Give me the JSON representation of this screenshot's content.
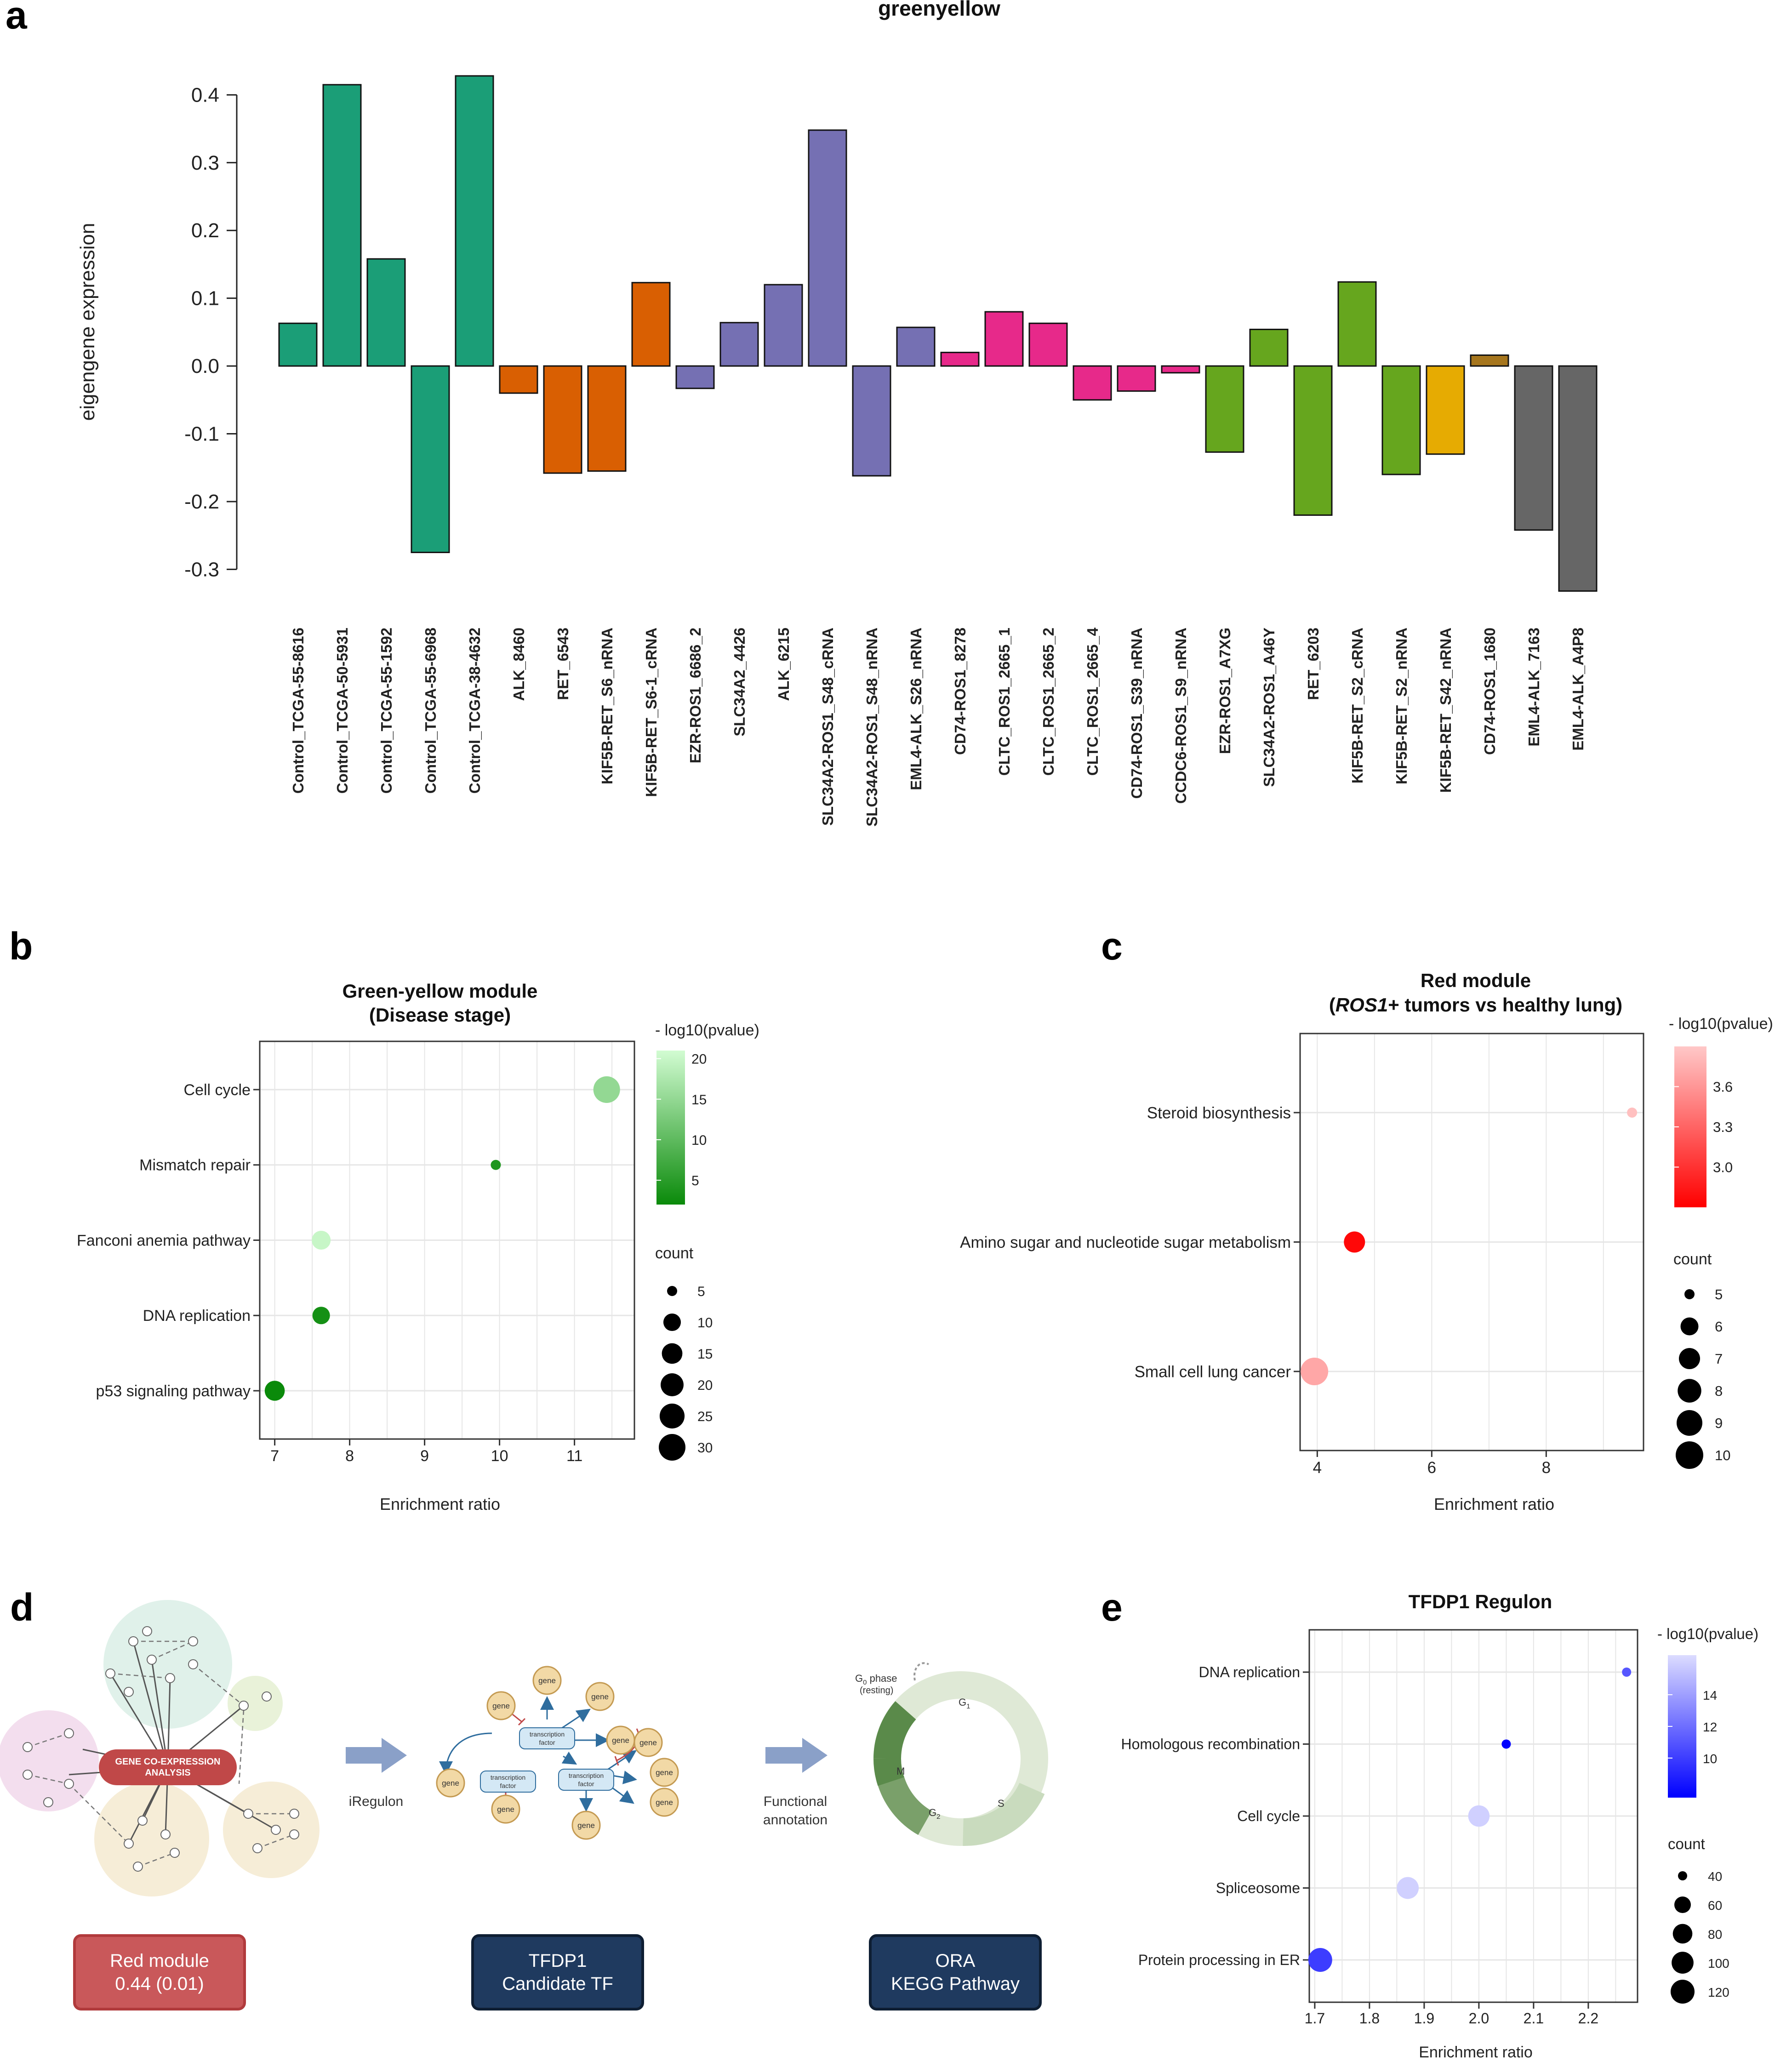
{
  "panel_labels": {
    "a": "a",
    "b": "b",
    "c": "c",
    "d": "d",
    "e": "e"
  },
  "colors": {
    "control": "#1b9e77",
    "orange": "#d95f02",
    "purple": "#7570b3",
    "pink": "#e7298a",
    "green": "#66a61e",
    "gold": "#e6ab02",
    "brown": "#a6761d",
    "gray": "#666666",
    "red_box": "#c9585a",
    "navy_box": "#1f3a5f"
  },
  "chart_data": [
    {
      "id": "a",
      "type": "bar",
      "title": "greenyellow",
      "ylabel": "eigengene expression",
      "xlabel": "",
      "ylim": [
        -0.3,
        0.4
      ],
      "yticks": [
        "0.4",
        "0.3",
        "0.2",
        "0.1",
        "0.0",
        "-0.1",
        "-0.2",
        "-0.3"
      ],
      "ytick_values": [
        0.4,
        0.3,
        0.2,
        0.1,
        0.0,
        -0.1,
        -0.2,
        -0.3
      ],
      "categories": [
        "Control_TCGA-55-8616",
        "Control_TCGA-50-5931",
        "Control_TCGA-55-1592",
        "Control_TCGA-55-6968",
        "Control_TCGA-38-4632",
        "ALK_8460",
        "RET_6543",
        "KIF5B-RET_S6_nRNA",
        "KIF5B-RET_S6-1_cRNA",
        "EZR-ROS1_6686_2",
        "SLC34A2_4426",
        "ALK_6215",
        "SLC34A2-ROS1_S48_cRNA",
        "SLC34A2-ROS1_S48_nRNA",
        "EML4-ALK_S26_nRNA",
        "CD74-ROS1_8278",
        "CLTC_ROS1_2665_1",
        "CLTC_ROS1_2665_2",
        "CLTC_ROS1_2665_4",
        "CD74-ROS1_S39_nRNA",
        "CCDC6-ROS1_S9_nRNA",
        "EZR-ROS1_A7XG",
        "SLC34A2-ROS1_A46Y",
        "RET_6203",
        "KIF5B-RET_S2_cRNA",
        "KIF5B-RET_S2_nRNA",
        "KIF5B-RET_S42_nRNA",
        "CD74-ROS1_1680",
        "EML4-ALK_7163",
        "EML4-ALK_A4P8"
      ],
      "values": [
        0.063,
        0.415,
        0.158,
        -0.275,
        0.428,
        -0.04,
        -0.158,
        -0.155,
        0.123,
        -0.033,
        0.064,
        0.12,
        0.348,
        -0.162,
        0.057,
        0.02,
        0.08,
        0.063,
        -0.05,
        -0.037,
        -0.01,
        -0.127,
        0.054,
        -0.22,
        0.124,
        -0.16,
        -0.13,
        0.016,
        -0.242,
        -0.332
      ],
      "bar_colors": [
        "#1b9e77",
        "#1b9e77",
        "#1b9e77",
        "#1b9e77",
        "#1b9e77",
        "#d95f02",
        "#d95f02",
        "#d95f02",
        "#d95f02",
        "#7570b3",
        "#7570b3",
        "#7570b3",
        "#7570b3",
        "#7570b3",
        "#7570b3",
        "#e7298a",
        "#e7298a",
        "#e7298a",
        "#e7298a",
        "#e7298a",
        "#e7298a",
        "#66a61e",
        "#66a61e",
        "#66a61e",
        "#66a61e",
        "#66a61e",
        "#e6ab02",
        "#a6761d",
        "#666666",
        "#666666"
      ]
    },
    {
      "id": "b",
      "type": "scatter",
      "title": [
        "Green-yellow module",
        "(Disease stage)"
      ],
      "xlabel": "Enrichment ratio",
      "xlim": [
        6.8,
        11.8
      ],
      "xticks": [
        "7",
        "8",
        "9",
        "10",
        "11"
      ],
      "xtick_values": [
        7,
        8,
        9,
        10,
        11
      ],
      "categories": [
        "Cell cycle",
        "Mismatch repair",
        "Fanconi anemia pathway",
        "DNA replication",
        "p53 signaling pathway"
      ],
      "x": [
        11.43,
        9.95,
        7.62,
        7.62,
        7.0
      ],
      "count": [
        30,
        5,
        12,
        10,
        14
      ],
      "pvalue": [
        15,
        4,
        20,
        3,
        2
      ],
      "color_legend": {
        "title": "- log10(pvalue)",
        "ticks": [
          "20",
          "15",
          "10",
          "5"
        ],
        "tick_values": [
          20,
          15,
          10,
          5
        ],
        "range": [
          2,
          21
        ],
        "low": "#0a8a0a",
        "high": "#d2fcd2"
      },
      "size_legend": {
        "title": "count",
        "labels": [
          "5",
          "10",
          "15",
          "20",
          "25",
          "30"
        ],
        "values": [
          5,
          10,
          15,
          20,
          25,
          30
        ]
      }
    },
    {
      "id": "c",
      "type": "scatter",
      "title": [
        "Red module",
        "(ROS1+ tumors vs healthy lung)"
      ],
      "title_italic": "ROS1",
      "xlabel": "Enrichment ratio",
      "xlim": [
        3.7,
        9.7
      ],
      "xticks": [
        "4",
        "6",
        "8"
      ],
      "xtick_values": [
        4,
        6,
        8
      ],
      "categories": [
        "Steroid biosynthesis",
        "Amino sugar and nucleotide sugar metabolism",
        "Small cell lung cancer"
      ],
      "x": [
        9.5,
        4.65,
        3.95
      ],
      "count": [
        4,
        7,
        10
      ],
      "pvalue": [
        3.85,
        2.75,
        3.7
      ],
      "color_legend": {
        "title": "- log10(pvalue)",
        "ticks": [
          "3.6",
          "3.3",
          "3.0"
        ],
        "tick_values": [
          3.6,
          3.3,
          3.0
        ],
        "range": [
          2.7,
          3.9
        ],
        "low": "#ff0000",
        "high": "#ffc8c8"
      },
      "size_legend": {
        "title": "count",
        "labels": [
          "5",
          "6",
          "7",
          "8",
          "9",
          "10"
        ],
        "values": [
          5,
          6,
          7,
          8,
          9,
          10
        ]
      }
    },
    {
      "id": "e",
      "type": "scatter",
      "title": [
        "TFDP1 Regulon"
      ],
      "xlabel": "Enrichment ratio",
      "xlim": [
        1.69,
        2.29
      ],
      "xticks": [
        "1.7",
        "1.8",
        "1.9",
        "2.0",
        "2.1",
        "2.2"
      ],
      "xtick_values": [
        1.7,
        1.8,
        1.9,
        2.0,
        2.1,
        2.2
      ],
      "categories": [
        "DNA replication",
        "Homologous recombination",
        "Cell cycle",
        "Spliceosome",
        "Protein processing in ER"
      ],
      "x": [
        2.27,
        2.05,
        2.0,
        1.87,
        1.71
      ],
      "count": [
        32,
        38,
        95,
        100,
        120
      ],
      "pvalue": [
        11,
        7,
        16,
        16,
        10
      ],
      "color_legend": {
        "title": "- log10(pvalue)",
        "ticks": [
          "14",
          "12",
          "10"
        ],
        "tick_values": [
          14,
          12,
          10
        ],
        "range": [
          7.5,
          16.5
        ],
        "low": "#0000ff",
        "high": "#dcdcff"
      },
      "size_legend": {
        "title": "count",
        "labels": [
          "40",
          "60",
          "80",
          "100",
          "120"
        ],
        "values": [
          40,
          60,
          80,
          100,
          120
        ]
      }
    }
  ],
  "panel_d": {
    "center_label": [
      "GENE CO-EXPRESSION",
      "ANALYSIS"
    ],
    "arrow1_label": "iRegulon",
    "arrow2_label": [
      "Functional",
      "annotation"
    ],
    "gene_label": "gene",
    "tf_label": [
      "transcription",
      "factor"
    ],
    "cycle_labels": {
      "g0": "G",
      "g0_sub": "0",
      "g0_suffix": " phase",
      "resting": "(resting)",
      "g1": "G",
      "g1_sub": "1",
      "s": "S",
      "g2": "G",
      "g2_sub": "2",
      "m": "M"
    },
    "boxes": [
      {
        "line1": "Red module",
        "line2": "0.44 (0.01)"
      },
      {
        "line1": "TFDP1",
        "line2": "Candidate TF"
      },
      {
        "line1": "ORA",
        "line2": "KEGG Pathway"
      }
    ]
  }
}
